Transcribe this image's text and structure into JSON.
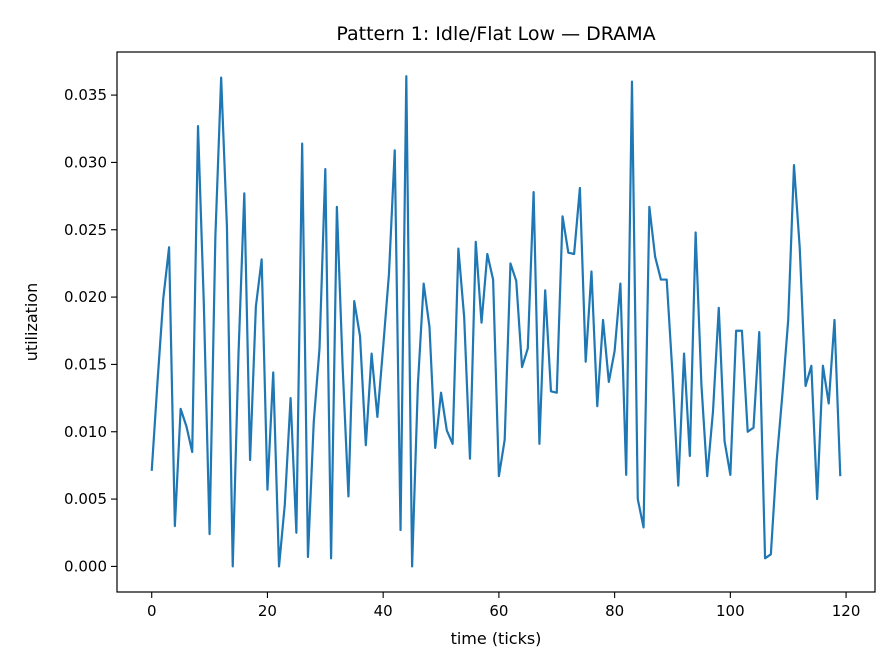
{
  "chart_data": {
    "type": "line",
    "title": "Pattern 1: Idle/Flat Low — DRAMA",
    "xlabel": "time (ticks)",
    "ylabel": "utilization",
    "xlim": [
      -6,
      125
    ],
    "ylim": [
      -0.0019,
      0.0382
    ],
    "xticks": [
      0,
      20,
      40,
      60,
      80,
      100,
      120
    ],
    "yticks": [
      0.0,
      0.005,
      0.01,
      0.015,
      0.02,
      0.025,
      0.03,
      0.035
    ],
    "xtick_labels": [
      "0",
      "20",
      "40",
      "60",
      "80",
      "100",
      "120"
    ],
    "ytick_labels": [
      "0.000",
      "0.005",
      "0.010",
      "0.015",
      "0.020",
      "0.025",
      "0.030",
      "0.035"
    ],
    "grid": false,
    "series": [
      {
        "color": "#1f77b4",
        "x": [
          0,
          1,
          2,
          3,
          4,
          5,
          6,
          7,
          8,
          9,
          10,
          11,
          12,
          13,
          14,
          15,
          16,
          17,
          18,
          19,
          20,
          21,
          22,
          23,
          24,
          25,
          26,
          27,
          28,
          29,
          30,
          31,
          32,
          33,
          34,
          35,
          36,
          37,
          38,
          39,
          40,
          41,
          42,
          43,
          44,
          45,
          46,
          47,
          48,
          49,
          50,
          51,
          52,
          53,
          54,
          55,
          56,
          57,
          58,
          59,
          60,
          61,
          62,
          63,
          64,
          65,
          66,
          67,
          68,
          69,
          70,
          71,
          72,
          73,
          74,
          75,
          76,
          77,
          78,
          79,
          80,
          81,
          82,
          83,
          84,
          85,
          86,
          87,
          88,
          89,
          90,
          91,
          92,
          93,
          94,
          95,
          96,
          97,
          98,
          99,
          100,
          101,
          102,
          103,
          104,
          105,
          106,
          107,
          108,
          109,
          110,
          111,
          112,
          113,
          114,
          115,
          116,
          117,
          118,
          119
        ],
        "values": [
          0.0071,
          0.0137,
          0.0199,
          0.0237,
          0.003,
          0.0117,
          0.0104,
          0.0085,
          0.0327,
          0.0196,
          0.0024,
          0.0245,
          0.0363,
          0.0252,
          0.0,
          0.0158,
          0.0277,
          0.0079,
          0.0193,
          0.0228,
          0.0057,
          0.0144,
          0.0,
          0.0046,
          0.0125,
          0.0025,
          0.0314,
          0.0007,
          0.0107,
          0.0162,
          0.0295,
          0.0006,
          0.0267,
          0.0148,
          0.0052,
          0.0197,
          0.0171,
          0.009,
          0.0158,
          0.0111,
          0.0163,
          0.0217,
          0.0309,
          0.0027,
          0.0364,
          0.0,
          0.0135,
          0.021,
          0.0178,
          0.0088,
          0.0129,
          0.0101,
          0.0091,
          0.0236,
          0.0185,
          0.008,
          0.0241,
          0.0181,
          0.0232,
          0.0213,
          0.0067,
          0.0094,
          0.0225,
          0.0212,
          0.0148,
          0.0162,
          0.0278,
          0.0091,
          0.0205,
          0.013,
          0.0129,
          0.026,
          0.0233,
          0.0232,
          0.0281,
          0.0152,
          0.0219,
          0.0119,
          0.0183,
          0.0137,
          0.016,
          0.021,
          0.0068,
          0.036,
          0.005,
          0.0029,
          0.0267,
          0.023,
          0.0213,
          0.0213,
          0.0143,
          0.006,
          0.0158,
          0.0082,
          0.0248,
          0.0135,
          0.0067,
          0.0115,
          0.0192,
          0.0093,
          0.0068,
          0.0175,
          0.0175,
          0.01,
          0.0103,
          0.0174,
          0.0006,
          0.0009,
          0.0078,
          0.0128,
          0.0183,
          0.0298,
          0.0236,
          0.0134,
          0.0149,
          0.005,
          0.0149,
          0.0121,
          0.0183,
          0.0067
        ]
      }
    ]
  }
}
